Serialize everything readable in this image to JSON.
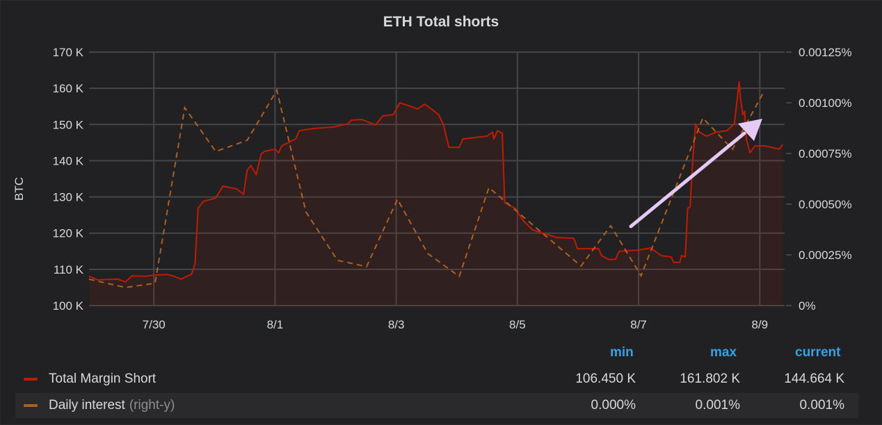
{
  "panel": {
    "title": "ETH Total shorts"
  },
  "colors": {
    "margin_short": "#bf1b00",
    "daily_interest": "#b0601e",
    "arrow": "#e5c9f7",
    "grid": "#464649"
  },
  "legend": {
    "headers": {
      "min": "min",
      "max": "max",
      "current": "current"
    },
    "rows": [
      {
        "name": "Total Margin Short",
        "suffix": "",
        "min": "106.450 K",
        "max": "161.802 K",
        "current": "144.664 K"
      },
      {
        "name": "Daily interest",
        "suffix": "(right-y)",
        "min": "0.000%",
        "max": "0.001%",
        "current": "0.001%"
      }
    ]
  },
  "chart_data": {
    "type": "line",
    "title": "ETH Total shorts",
    "x_unit": "days since 7/30",
    "xlim": [
      -1.07,
      10.41
    ],
    "x_ticks": [
      {
        "v": 0,
        "label": "7/30"
      },
      {
        "v": 2,
        "label": "8/1"
      },
      {
        "v": 4,
        "label": "8/3"
      },
      {
        "v": 6,
        "label": "8/5"
      },
      {
        "v": 8,
        "label": "8/7"
      },
      {
        "v": 10,
        "label": "8/9"
      }
    ],
    "ylabel": "BTC",
    "ylim": [
      100,
      170
    ],
    "y_ticks": [
      {
        "v": 100,
        "label": "100 K"
      },
      {
        "v": 110,
        "label": "110 K"
      },
      {
        "v": 120,
        "label": "120 K"
      },
      {
        "v": 130,
        "label": "130 K"
      },
      {
        "v": 140,
        "label": "140 K"
      },
      {
        "v": 150,
        "label": "150 K"
      },
      {
        "v": 160,
        "label": "160 K"
      },
      {
        "v": 170,
        "label": "170 K"
      }
    ],
    "y2lim": [
      0,
      0.00125
    ],
    "y2_ticks": [
      {
        "v": 0,
        "label": "0%"
      },
      {
        "v": 0.00025,
        "label": "0.00025%"
      },
      {
        "v": 0.0005,
        "label": "0.00050%"
      },
      {
        "v": 0.00075,
        "label": "0.00075%"
      },
      {
        "v": 0.001,
        "label": "0.00100%"
      },
      {
        "v": 0.00125,
        "label": "0.00125%"
      }
    ],
    "grid": true,
    "legend_position": "bottom",
    "series": [
      {
        "name": "Total Margin Short",
        "axis": "left",
        "unit": "K BTC",
        "style": "solid-fill",
        "points": [
          [
            -1.07,
            108.1
          ],
          [
            -0.93,
            107.1
          ],
          [
            -0.59,
            107.3
          ],
          [
            -0.47,
            106.5
          ],
          [
            -0.36,
            108.2
          ],
          [
            -0.13,
            108.1
          ],
          [
            -0.01,
            108.4
          ],
          [
            0.22,
            108.6
          ],
          [
            0.33,
            108.1
          ],
          [
            0.45,
            107.3
          ],
          [
            0.56,
            108.2
          ],
          [
            0.62,
            108.6
          ],
          [
            0.68,
            111.5
          ],
          [
            0.73,
            126.9
          ],
          [
            0.82,
            128.8
          ],
          [
            1.02,
            129.7
          ],
          [
            1.14,
            133.0
          ],
          [
            1.37,
            132.2
          ],
          [
            1.48,
            130.7
          ],
          [
            1.54,
            137.4
          ],
          [
            1.6,
            138.7
          ],
          [
            1.69,
            136.1
          ],
          [
            1.77,
            141.8
          ],
          [
            1.83,
            142.6
          ],
          [
            2.0,
            143.2
          ],
          [
            2.06,
            142.2
          ],
          [
            2.11,
            144.1
          ],
          [
            2.34,
            146.0
          ],
          [
            2.4,
            148.3
          ],
          [
            2.63,
            148.9
          ],
          [
            2.97,
            149.3
          ],
          [
            3.2,
            150.2
          ],
          [
            3.26,
            151.2
          ],
          [
            3.43,
            151.4
          ],
          [
            3.66,
            149.9
          ],
          [
            3.78,
            152.4
          ],
          [
            3.95,
            152.7
          ],
          [
            4.06,
            156.0
          ],
          [
            4.24,
            155.0
          ],
          [
            4.35,
            154.3
          ],
          [
            4.47,
            155.6
          ],
          [
            4.58,
            154.3
          ],
          [
            4.7,
            152.7
          ],
          [
            4.78,
            149.9
          ],
          [
            4.87,
            143.7
          ],
          [
            5.04,
            143.7
          ],
          [
            5.1,
            146.0
          ],
          [
            5.5,
            146.8
          ],
          [
            5.59,
            147.9
          ],
          [
            5.61,
            146.0
          ],
          [
            5.67,
            148.3
          ],
          [
            5.75,
            147.6
          ],
          [
            5.79,
            128.4
          ],
          [
            5.96,
            126.9
          ],
          [
            6.1,
            123.4
          ],
          [
            6.25,
            120.9
          ],
          [
            6.65,
            118.8
          ],
          [
            6.93,
            118.6
          ],
          [
            6.99,
            115.7
          ],
          [
            7.34,
            115.7
          ],
          [
            7.39,
            113.8
          ],
          [
            7.51,
            112.7
          ],
          [
            7.62,
            112.8
          ],
          [
            7.68,
            115.0
          ],
          [
            7.97,
            115.3
          ],
          [
            8.2,
            115.9
          ],
          [
            8.37,
            113.8
          ],
          [
            8.54,
            113.4
          ],
          [
            8.58,
            111.9
          ],
          [
            8.68,
            111.9
          ],
          [
            8.71,
            113.8
          ],
          [
            8.77,
            113.4
          ],
          [
            8.81,
            126.9
          ],
          [
            8.85,
            127.2
          ],
          [
            8.89,
            139.3
          ],
          [
            8.94,
            150.2
          ],
          [
            9.0,
            147.9
          ],
          [
            9.12,
            146.8
          ],
          [
            9.29,
            147.9
          ],
          [
            9.46,
            148.3
          ],
          [
            9.58,
            150.2
          ],
          [
            9.63,
            157.5
          ],
          [
            9.66,
            161.8
          ],
          [
            9.68,
            157.5
          ],
          [
            9.72,
            152.7
          ],
          [
            9.75,
            153.7
          ],
          [
            9.78,
            146.0
          ],
          [
            9.84,
            142.2
          ],
          [
            9.92,
            144.1
          ],
          [
            10.09,
            144.1
          ],
          [
            10.32,
            143.2
          ],
          [
            10.38,
            144.5
          ]
        ]
      },
      {
        "name": "Daily interest",
        "axis": "right",
        "unit": "%",
        "style": "dashed",
        "points": [
          [
            -1.07,
            0.00013
          ],
          [
            -0.47,
            8.9e-05
          ],
          [
            0.02,
            0.00011
          ],
          [
            0.51,
            0.000976
          ],
          [
            1.02,
            0.00076
          ],
          [
            1.54,
            0.000815
          ],
          [
            2.03,
            0.001062
          ],
          [
            2.51,
            0.000462
          ],
          [
            3.03,
            0.000223
          ],
          [
            3.51,
            0.000192
          ],
          [
            4.02,
            0.000524
          ],
          [
            4.52,
            0.000257
          ],
          [
            5.04,
            0.000144
          ],
          [
            5.53,
            0.000582
          ],
          [
            7.05,
            0.000195
          ],
          [
            7.54,
            0.000394
          ],
          [
            8.04,
            0.000147
          ],
          [
            9.06,
            0.000925
          ],
          [
            9.55,
            0.000771
          ],
          [
            10.05,
            0.001045
          ]
        ]
      }
    ]
  }
}
